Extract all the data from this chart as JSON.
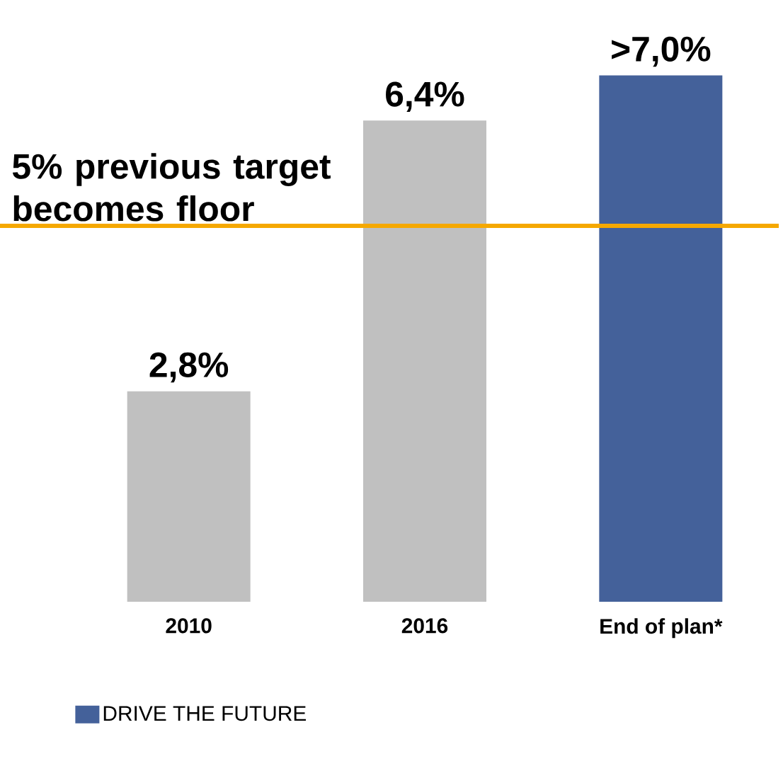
{
  "chart_data": {
    "type": "bar",
    "categories": [
      "2010",
      "2016",
      "End of plan*"
    ],
    "series": [
      {
        "color": "#c0c0c0",
        "values": [
          2.8,
          6.4,
          null
        ],
        "value_labels": [
          "2,8%",
          "6,4%",
          null
        ]
      },
      {
        "name": "DRIVE THE FUTURE",
        "color": "#44619a",
        "values": [
          null,
          null,
          7.0
        ],
        "value_labels": [
          null,
          null,
          ">7,0%"
        ]
      }
    ],
    "ref_lines": [
      {
        "axis": "y",
        "value": 5,
        "label": "5% previous target becomes floor",
        "color": "#f5a800"
      }
    ],
    "legend": "bottom left"
  }
}
